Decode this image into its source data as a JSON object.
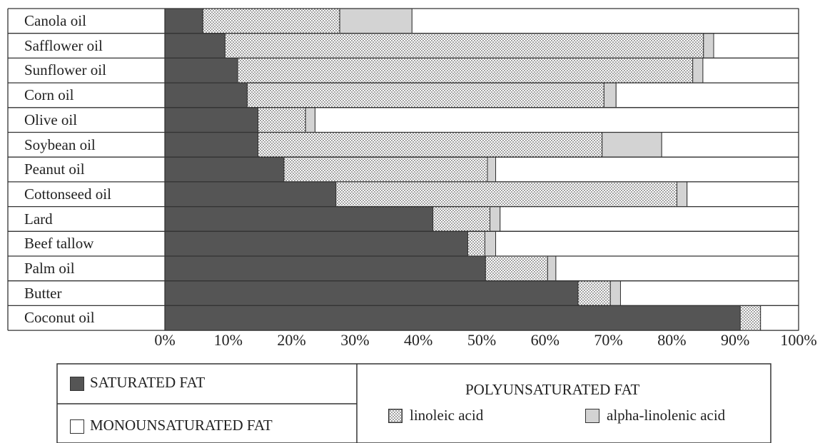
{
  "chart_data": {
    "type": "bar",
    "orientation": "horizontal",
    "stacked": true,
    "categories": [
      "Canola oil",
      "Safflower oil",
      "Sunflower oil",
      "Corn oil",
      "Olive oil",
      "Soybean oil",
      "Peanut oil",
      "Cottonseed oil",
      "Lard",
      "Beef tallow",
      "Palm oil",
      "Butter",
      "Coconut oil"
    ],
    "series": [
      {
        "name": "SATURATED FAT",
        "color": "#555555",
        "pattern": "solid",
        "values": [
          6,
          9.5,
          11.5,
          13,
          14.7,
          14.7,
          18.8,
          27,
          42.3,
          47.8,
          50.6,
          65.2,
          90.8
        ]
      },
      {
        "name": "linoleic acid",
        "color": "#ffffff",
        "pattern": "dots",
        "values": [
          21.6,
          75.5,
          71.8,
          56.3,
          7.5,
          54.3,
          32.1,
          53.8,
          9,
          2.7,
          9.8,
          5.1,
          3.2
        ]
      },
      {
        "name": "alpha-linolenic acid",
        "color": "#d3d3d3",
        "pattern": "solid",
        "values": [
          11.4,
          1.6,
          1.6,
          1.9,
          1.5,
          9.4,
          1.3,
          1.6,
          1.6,
          1.7,
          1.3,
          1.6,
          0
        ]
      },
      {
        "name": "MONOUNSATURATED FAT",
        "color": "#ffffff",
        "pattern": "solid",
        "values": [
          61,
          13.4,
          15.1,
          28.8,
          76.3,
          21.6,
          47.8,
          17.6,
          47.1,
          47.8,
          38.3,
          28.1,
          6
        ]
      }
    ],
    "ticks": [
      "0%",
      "10%",
      "20%",
      "30%",
      "40%",
      "50%",
      "60%",
      "70%",
      "80%",
      "90%",
      "100%"
    ],
    "xlim": [
      0,
      100
    ],
    "legend": {
      "saturated": "SATURATED FAT",
      "monounsaturated": "MONOUNSATURATED FAT",
      "polyunsaturated_header": "POLYUNSATURATED FAT",
      "linoleic": "linoleic acid",
      "alpha": "alpha-linolenic acid",
      "placement": "bottom"
    }
  }
}
